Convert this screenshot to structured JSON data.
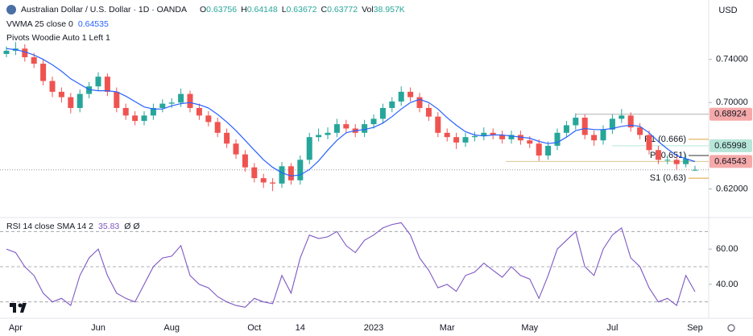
{
  "header": {
    "title": "Australian Dollar / U.S. Dollar · 1D · OANDA",
    "currency": "USD",
    "legend": [
      {
        "key": "O",
        "value": "0.63756"
      },
      {
        "key": "H",
        "value": "0.64148"
      },
      {
        "key": "L",
        "value": "0.63672"
      },
      {
        "key": "C",
        "value": "0.63772"
      },
      {
        "key": "Vol",
        "value": "38.957K"
      }
    ]
  },
  "chart_data": [
    {
      "type": "candlestick",
      "categories": [
        null,
        "Apr",
        null,
        null,
        null,
        null,
        null,
        null,
        null,
        null,
        "Jun",
        null,
        null,
        null,
        null,
        null,
        null,
        null,
        "Aug",
        null,
        null,
        null,
        null,
        null,
        null,
        null,
        null,
        "Oct",
        null,
        null,
        null,
        null,
        "14",
        null,
        null,
        null,
        null,
        null,
        null,
        null,
        "2023",
        null,
        null,
        null,
        null,
        null,
        null,
        null,
        "Mar",
        null,
        null,
        null,
        null,
        null,
        null,
        null,
        null,
        "May",
        null,
        null,
        null,
        null,
        null,
        null,
        null,
        null,
        "Jul",
        null,
        null,
        null,
        null,
        null,
        null,
        null,
        null,
        "Sep"
      ],
      "open": [
        0.745,
        0.748,
        0.75,
        0.742,
        0.736,
        0.72,
        0.71,
        0.705,
        0.695,
        0.708,
        0.715,
        0.724,
        0.71,
        0.695,
        0.688,
        0.683,
        0.688,
        0.695,
        0.699,
        0.7,
        0.708,
        0.695,
        0.688,
        0.682,
        0.672,
        0.662,
        0.652,
        0.64,
        0.63,
        0.626,
        0.625,
        0.641,
        0.628,
        0.647,
        0.668,
        0.67,
        0.672,
        0.68,
        0.676,
        0.672,
        0.68,
        0.685,
        0.695,
        0.701,
        0.71,
        0.705,
        0.695,
        0.687,
        0.672,
        0.668,
        0.663,
        0.668,
        0.669,
        0.672,
        0.67,
        0.666,
        0.67,
        0.665,
        0.662,
        0.651,
        0.66,
        0.672,
        0.679,
        0.686,
        0.67,
        0.665,
        0.675,
        0.685,
        0.688,
        0.677,
        0.67,
        0.656,
        0.647,
        0.647,
        0.643,
        0.63756
      ],
      "high": [
        0.752,
        0.756,
        0.754,
        0.746,
        0.74,
        0.724,
        0.714,
        0.709,
        0.712,
        0.719,
        0.728,
        0.727,
        0.714,
        0.699,
        0.692,
        0.692,
        0.699,
        0.703,
        0.704,
        0.713,
        0.711,
        0.699,
        0.692,
        0.686,
        0.676,
        0.666,
        0.656,
        0.644,
        0.634,
        0.63,
        0.645,
        0.644,
        0.651,
        0.672,
        0.676,
        0.677,
        0.685,
        0.684,
        0.68,
        0.684,
        0.689,
        0.699,
        0.705,
        0.715,
        0.714,
        0.709,
        0.699,
        0.691,
        0.676,
        0.672,
        0.672,
        0.673,
        0.677,
        0.676,
        0.674,
        0.674,
        0.674,
        0.669,
        0.666,
        0.664,
        0.676,
        0.683,
        0.69,
        0.689,
        0.674,
        0.679,
        0.689,
        0.694,
        0.691,
        0.681,
        0.674,
        0.66,
        0.651,
        0.651,
        0.652,
        0.64148
      ],
      "low": [
        0.742,
        0.744,
        0.738,
        0.732,
        0.716,
        0.705,
        0.7,
        0.69,
        0.691,
        0.704,
        0.711,
        0.706,
        0.691,
        0.684,
        0.679,
        0.679,
        0.684,
        0.691,
        0.695,
        0.696,
        0.691,
        0.684,
        0.678,
        0.668,
        0.658,
        0.648,
        0.636,
        0.626,
        0.621,
        0.618,
        0.621,
        0.624,
        0.624,
        0.643,
        0.664,
        0.666,
        0.668,
        0.672,
        0.668,
        0.668,
        0.676,
        0.681,
        0.691,
        0.697,
        0.701,
        0.691,
        0.683,
        0.668,
        0.664,
        0.657,
        0.659,
        0.664,
        0.665,
        0.666,
        0.662,
        0.662,
        0.661,
        0.658,
        0.646,
        0.647,
        0.656,
        0.668,
        0.675,
        0.666,
        0.66,
        0.661,
        0.671,
        0.681,
        0.673,
        0.666,
        0.652,
        0.643,
        0.643,
        0.638,
        0.64,
        0.63672
      ],
      "close": [
        0.748,
        0.75,
        0.742,
        0.736,
        0.72,
        0.71,
        0.705,
        0.695,
        0.708,
        0.715,
        0.724,
        0.71,
        0.695,
        0.688,
        0.683,
        0.688,
        0.695,
        0.699,
        0.7,
        0.708,
        0.695,
        0.688,
        0.682,
        0.672,
        0.662,
        0.652,
        0.64,
        0.63,
        0.626,
        0.625,
        0.641,
        0.628,
        0.647,
        0.668,
        0.67,
        0.672,
        0.68,
        0.676,
        0.672,
        0.68,
        0.685,
        0.695,
        0.701,
        0.71,
        0.705,
        0.695,
        0.687,
        0.672,
        0.668,
        0.663,
        0.668,
        0.669,
        0.672,
        0.67,
        0.666,
        0.67,
        0.665,
        0.662,
        0.651,
        0.66,
        0.672,
        0.679,
        0.686,
        0.67,
        0.665,
        0.675,
        0.685,
        0.688,
        0.677,
        0.67,
        0.656,
        0.647,
        0.647,
        0.643,
        0.648,
        0.63772
      ],
      "up_color": "#26a69a",
      "down_color": "#ef5350",
      "overlay": {
        "name": "VWMA 25 close 0",
        "last_label": "0.64535",
        "color": "#2962ff",
        "values": [
          0.75,
          0.749,
          0.747,
          0.744,
          0.74,
          0.735,
          0.729,
          0.722,
          0.717,
          0.712,
          0.711,
          0.711,
          0.71,
          0.706,
          0.701,
          0.696,
          0.694,
          0.694,
          0.697,
          0.699,
          0.7,
          0.698,
          0.695,
          0.689,
          0.682,
          0.674,
          0.665,
          0.656,
          0.647,
          0.64,
          0.635,
          0.632,
          0.633,
          0.638,
          0.646,
          0.656,
          0.665,
          0.672,
          0.674,
          0.675,
          0.677,
          0.681,
          0.687,
          0.694,
          0.7,
          0.703,
          0.7,
          0.694,
          0.686,
          0.679,
          0.673,
          0.67,
          0.669,
          0.67,
          0.67,
          0.669,
          0.668,
          0.667,
          0.664,
          0.662,
          0.663,
          0.668,
          0.674,
          0.676,
          0.675,
          0.675,
          0.676,
          0.678,
          0.679,
          0.678,
          0.672,
          0.664,
          0.657,
          0.651,
          0.648,
          0.64535
        ]
      },
      "pivot_name": "Pivots Woodie Auto 1 Left 1",
      "pivots": [
        {
          "label": "R1 (0.666)",
          "value": 0.666,
          "color": "#d9a53b"
        },
        {
          "label": "P (0.651)",
          "value": 0.651,
          "color": "#333333"
        },
        {
          "label": "S1 (0.63)",
          "value": 0.63,
          "color": "#d9a53b"
        }
      ],
      "price_levels": [
        {
          "value": 0.68924,
          "label": "0.68924",
          "color": "#f5a9a9",
          "line": "#b0b0b0"
        },
        {
          "value": 0.65998,
          "label": "0.65998",
          "color": "#b7e6d8",
          "line": "#b7e6d8"
        },
        {
          "value": 0.64543,
          "label": "0.64543",
          "color": "#f5a9a9",
          "line": "#d8c690"
        }
      ],
      "ylim": [
        0.595,
        0.795
      ],
      "yticks": [
        {
          "value": 0.74,
          "label": "0.74000"
        },
        {
          "value": 0.7,
          "label": "0.70000"
        },
        {
          "value": 0.62,
          "label": "0.62000"
        }
      ],
      "grid": false
    },
    {
      "type": "line",
      "name": "RSI 14 close SMA 14 2",
      "last_label": "35.83",
      "extra": "Ø Ø",
      "color": "#7e57c2",
      "values": [
        60,
        58,
        50,
        45,
        35,
        30,
        32,
        28,
        45,
        55,
        60,
        45,
        35,
        32,
        30,
        40,
        50,
        55,
        56,
        62,
        45,
        40,
        38,
        33,
        30,
        28,
        27,
        32,
        30,
        29,
        45,
        35,
        55,
        68,
        66,
        67,
        70,
        62,
        58,
        65,
        68,
        72,
        74,
        75,
        68,
        55,
        48,
        38,
        40,
        36,
        45,
        47,
        52,
        48,
        44,
        50,
        45,
        43,
        32,
        45,
        60,
        65,
        70,
        50,
        45,
        60,
        68,
        72,
        55,
        50,
        38,
        30,
        32,
        28,
        45,
        35.83
      ],
      "hlines": [
        70,
        50,
        30
      ],
      "ylim": [
        23,
        77
      ],
      "yticks": [
        {
          "value": 60,
          "label": "60.00"
        },
        {
          "value": 40,
          "label": "40.00"
        }
      ],
      "grid": false
    }
  ]
}
